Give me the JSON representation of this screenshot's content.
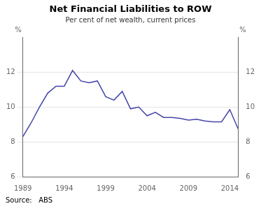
{
  "chart_data": {
    "type": "line",
    "title": "Net Financial Liabilities to ROW",
    "subtitle": "Per cent of net wealth, current prices",
    "source": "Source:   ABS",
    "ylabel": "%",
    "y2label": "%",
    "x": [
      1989,
      1990,
      1991,
      1992,
      1993,
      1994,
      1995,
      1996,
      1997,
      1998,
      1999,
      2000,
      2001,
      2002,
      2003,
      2004,
      2005,
      2006,
      2007,
      2008,
      2009,
      2010,
      2011,
      2012,
      2013,
      2014,
      2015
    ],
    "values": [
      8.3,
      9.1,
      10.0,
      10.8,
      11.2,
      11.2,
      12.1,
      11.5,
      11.4,
      11.5,
      10.6,
      10.4,
      10.9,
      9.9,
      10.0,
      9.5,
      9.7,
      9.4,
      9.4,
      9.35,
      9.25,
      9.3,
      9.2,
      9.15,
      9.15,
      9.85,
      8.75
    ],
    "color": "#4444aa",
    "xlim": [
      1989,
      2015
    ],
    "xticks": [
      1989,
      1994,
      1999,
      2004,
      2009,
      2014
    ],
    "ylim": [
      6,
      14
    ],
    "yticks": [
      6,
      8,
      10,
      12
    ],
    "y2lim": [
      6,
      14
    ],
    "y2ticks": [
      6,
      8,
      10,
      12
    ],
    "grid": "y"
  }
}
